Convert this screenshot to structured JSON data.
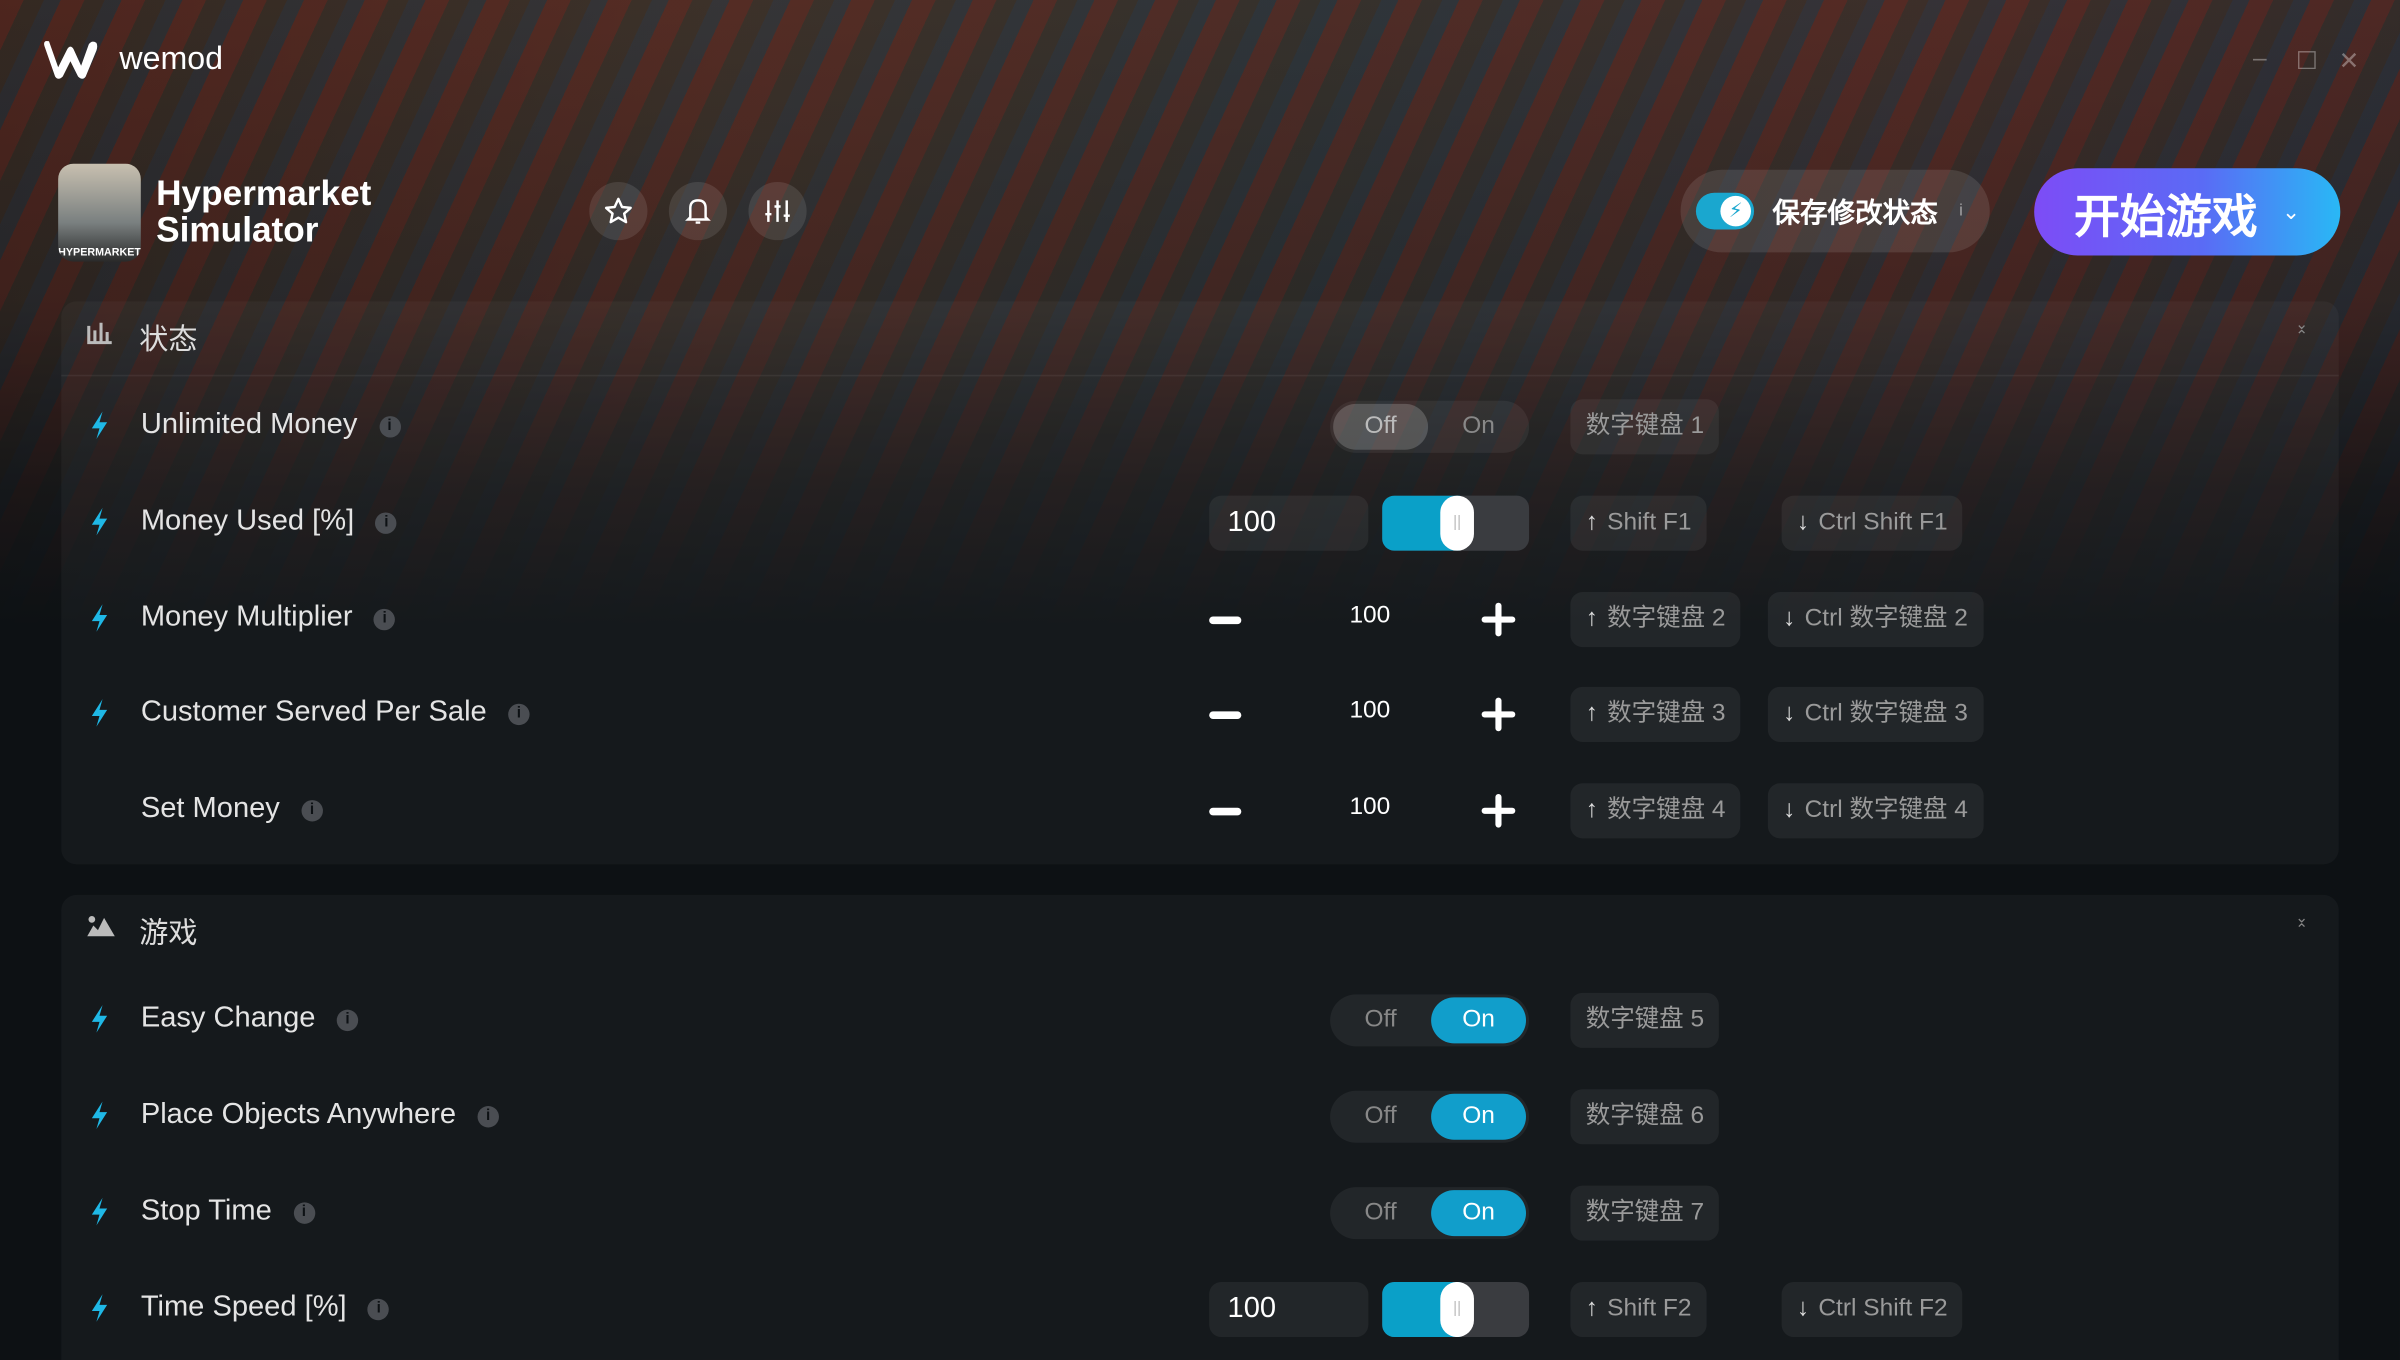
{
  "app": {
    "name": "wemod"
  },
  "window_controls": {
    "minimize": "–",
    "maximize": "☐",
    "close": "✕"
  },
  "game": {
    "title_line1": "Hypermarket",
    "title_line2": "Simulator",
    "thumb_text": "HYPERMARKET"
  },
  "header_buttons": [
    {
      "icon": "star-icon"
    },
    {
      "icon": "bell-icon"
    },
    {
      "icon": "sliders-icon"
    }
  ],
  "save_mods": {
    "label": "保存修改状态",
    "enabled": true,
    "info": "i"
  },
  "play": {
    "label": "开始游戏",
    "caret": "⌄"
  },
  "colors": {
    "accent": "#119ecb",
    "play_gradient": [
      "#7d4cf6",
      "#29b8f5"
    ],
    "background": "#0d1114"
  },
  "toggle_labels": {
    "off": "Off",
    "on": "On"
  },
  "sections": [
    {
      "title": "状态",
      "icon": "bar-chart-icon",
      "rows": [
        {
          "label": "Unlimited Money",
          "bolt": true,
          "type": "toggle",
          "value": "off",
          "hotkeys": [
            {
              "arrow": "",
              "keys": "数字键盘 1"
            }
          ]
        },
        {
          "label": "Money Used [%]",
          "bolt": true,
          "type": "slider",
          "value": "100",
          "fraction": 0.5,
          "hotkeys": [
            {
              "arrow": "↑",
              "keys": "Shift F1"
            },
            {
              "arrow": "↓",
              "keys": "Ctrl Shift F1"
            }
          ]
        },
        {
          "label": "Money Multiplier",
          "bolt": true,
          "type": "stepper",
          "value": "100",
          "hotkeys": [
            {
              "arrow": "↑",
              "keys": "数字键盘 2"
            },
            {
              "arrow": "↓",
              "keys": "Ctrl 数字键盘 2"
            }
          ]
        },
        {
          "label": "Customer Served Per Sale",
          "bolt": true,
          "type": "stepper",
          "value": "100",
          "hotkeys": [
            {
              "arrow": "↑",
              "keys": "数字键盘 3"
            },
            {
              "arrow": "↓",
              "keys": "Ctrl 数字键盘 3"
            }
          ]
        },
        {
          "label": "Set Money",
          "bolt": false,
          "type": "stepper",
          "value": "100",
          "hotkeys": [
            {
              "arrow": "↑",
              "keys": "数字键盘 4"
            },
            {
              "arrow": "↓",
              "keys": "Ctrl 数字键盘 4"
            }
          ]
        }
      ]
    },
    {
      "title": "游戏",
      "icon": "landscape-icon",
      "rows": [
        {
          "label": "Easy Change",
          "bolt": true,
          "type": "toggle",
          "value": "on",
          "hotkeys": [
            {
              "arrow": "",
              "keys": "数字键盘 5"
            }
          ]
        },
        {
          "label": "Place Objects Anywhere",
          "bolt": true,
          "type": "toggle",
          "value": "on",
          "hotkeys": [
            {
              "arrow": "",
              "keys": "数字键盘 6"
            }
          ]
        },
        {
          "label": "Stop Time",
          "bolt": true,
          "type": "toggle",
          "value": "on",
          "hotkeys": [
            {
              "arrow": "",
              "keys": "数字键盘 7"
            }
          ]
        },
        {
          "label": "Time Speed [%]",
          "bolt": true,
          "type": "slider",
          "value": "100",
          "fraction": 0.5,
          "hotkeys": [
            {
              "arrow": "↑",
              "keys": "Shift F2"
            },
            {
              "arrow": "↓",
              "keys": "Ctrl Shift F2"
            }
          ]
        }
      ]
    }
  ]
}
